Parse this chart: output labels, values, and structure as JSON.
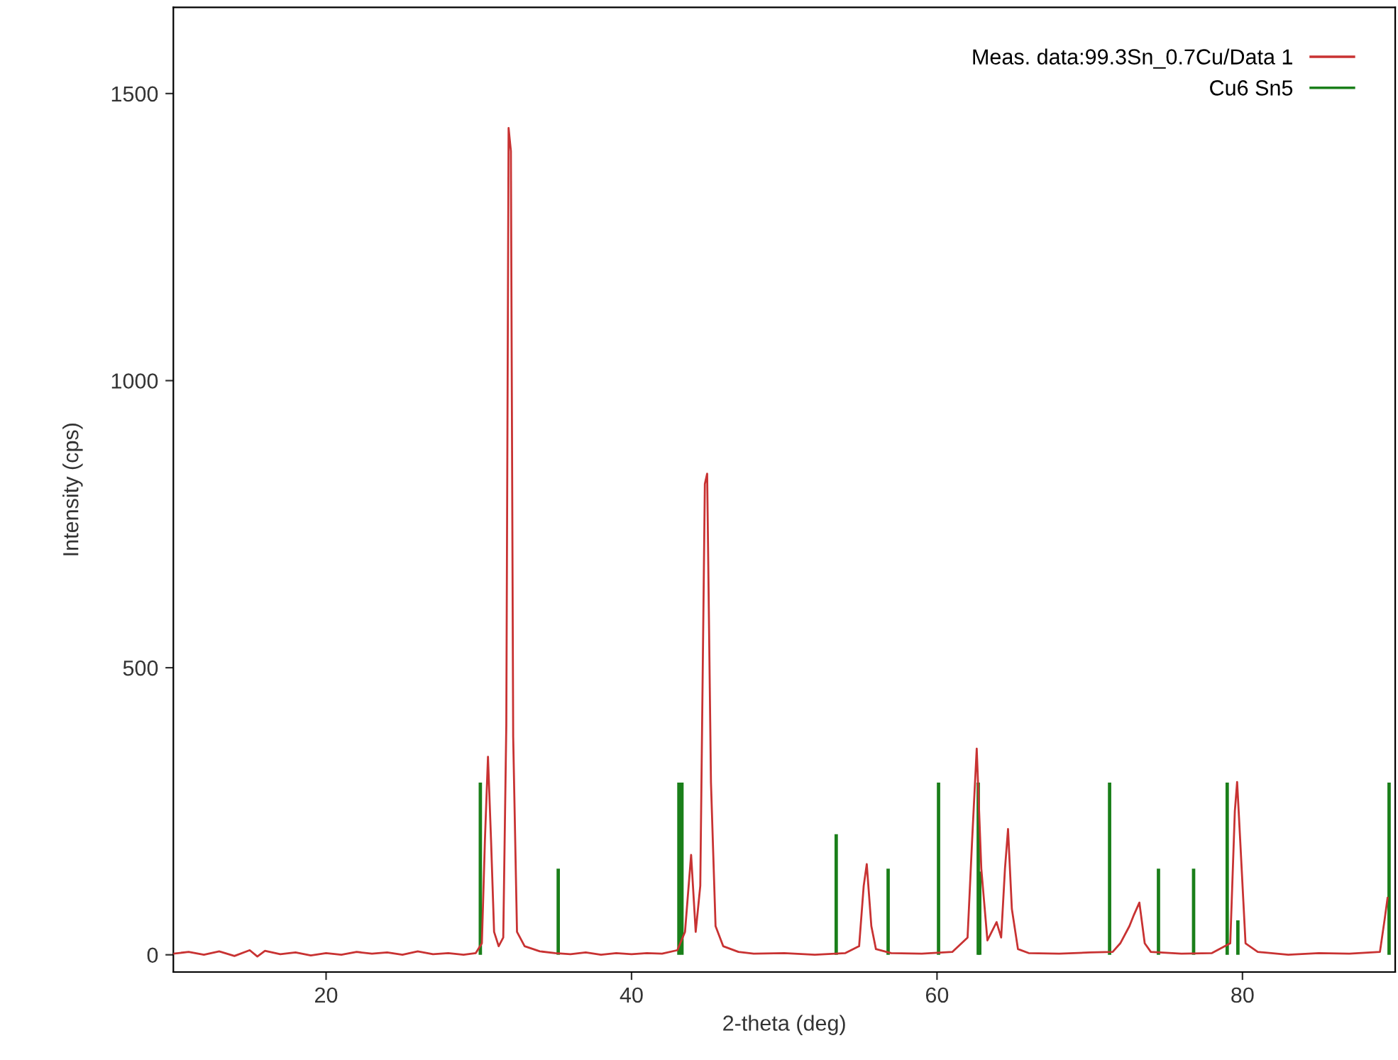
{
  "chart_data": {
    "type": "line",
    "xlabel": "2-theta (deg)",
    "ylabel": "Intensity (cps)",
    "xlim": [
      10,
      90
    ],
    "ylim": [
      -30,
      1650
    ],
    "xticks": [
      20,
      40,
      60,
      80
    ],
    "yticks": [
      0,
      500,
      1000,
      1500
    ],
    "grid": false,
    "legend": "top right",
    "series": [
      {
        "name": "Meas. data:99.3Sn_0.7Cu/Data 1",
        "color": "#c83232",
        "x": [
          10,
          11,
          12,
          13,
          14,
          15,
          15.5,
          16,
          17,
          18,
          19,
          20,
          21,
          22,
          23,
          24,
          25,
          26,
          27,
          28,
          29,
          29.8,
          30.2,
          30.4,
          30.6,
          30.8,
          31.0,
          31.3,
          31.6,
          31.8,
          31.95,
          32.1,
          32.25,
          32.5,
          33,
          34,
          35,
          36,
          37,
          38,
          39,
          40,
          41,
          42,
          43,
          43.5,
          43.9,
          44.2,
          44.5,
          44.8,
          44.95,
          45.2,
          45.5,
          46,
          47,
          48,
          50,
          52,
          54,
          54.9,
          55.2,
          55.4,
          55.7,
          56,
          57,
          59,
          61,
          62,
          62.3,
          62.6,
          62.9,
          63.3,
          63.9,
          64.2,
          64.45,
          64.65,
          64.9,
          65.3,
          66,
          68,
          70,
          71.5,
          72,
          72.6,
          72.9,
          73.25,
          73.6,
          74,
          76,
          78,
          79.2,
          79.5,
          79.65,
          79.85,
          80.2,
          81,
          83,
          85,
          87,
          89,
          89.3,
          89.5
        ],
        "values": [
          2,
          5,
          0,
          6,
          -2,
          8,
          -3,
          7,
          1,
          4,
          -1,
          3,
          0,
          5,
          2,
          4,
          0,
          6,
          1,
          3,
          0,
          3,
          20,
          200,
          345,
          200,
          40,
          15,
          30,
          400,
          1440,
          1400,
          380,
          40,
          15,
          6,
          3,
          1,
          4,
          0,
          3,
          1,
          3,
          2,
          8,
          40,
          174,
          40,
          120,
          820,
          838,
          300,
          50,
          15,
          5,
          2,
          3,
          0,
          3,
          15,
          120,
          158,
          50,
          10,
          3,
          2,
          5,
          30,
          200,
          359,
          150,
          25,
          57,
          30,
          150,
          219,
          80,
          10,
          3,
          2,
          4,
          5,
          20,
          50,
          70,
          91,
          20,
          5,
          2,
          3,
          20,
          250,
          301,
          200,
          20,
          5,
          0,
          3,
          2,
          5,
          60,
          99
        ]
      },
      {
        "name": "Cu6 Sn5",
        "type": "bar",
        "color": "#1a7f1a",
        "x": [
          30.1,
          35.2,
          43.1,
          43.3,
          53.4,
          56.8,
          60.1,
          62.7,
          62.8,
          71.3,
          74.5,
          76.8,
          79.0,
          79.7,
          89.6
        ],
        "values": [
          300,
          150,
          300,
          300,
          210,
          150,
          300,
          300,
          145,
          300,
          150,
          150,
          300,
          60,
          300
        ]
      }
    ]
  }
}
